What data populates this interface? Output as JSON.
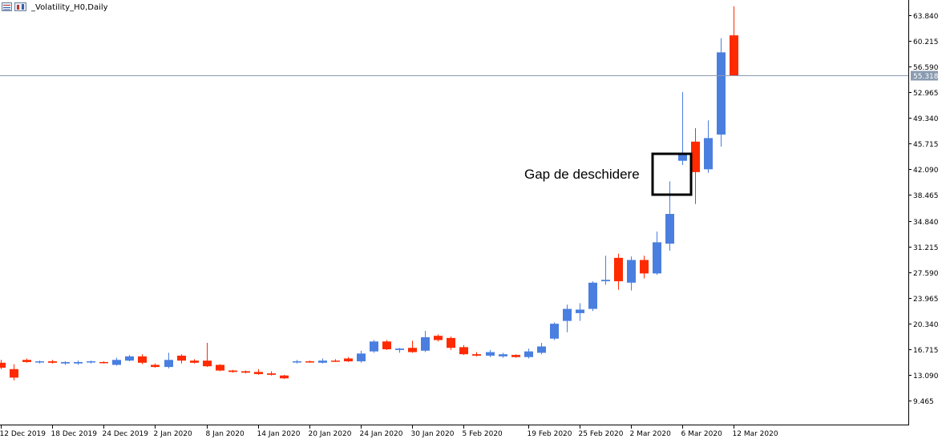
{
  "window": {
    "title": "_Volatility_H0,Daily",
    "icons": [
      "chart-window-icon",
      "chart-properties-icon"
    ]
  },
  "chart_data": {
    "type": "candlestick",
    "symbol": "_Volatility_H0",
    "timeframe": "Daily",
    "ylim": [
      6.5,
      66.0
    ],
    "y_ticks": [
      "63.840",
      "60.215",
      "56.590",
      "52.965",
      "49.340",
      "45.715",
      "42.090",
      "38.465",
      "34.840",
      "31.215",
      "27.590",
      "23.965",
      "20.340",
      "16.715",
      "13.090",
      "9.465"
    ],
    "x_labels": [
      "12 Dec 2019",
      "18 Dec 2019",
      "24 Dec 2019",
      "2 Jan 2020",
      "8 Jan 2020",
      "14 Jan 2020",
      "20 Jan 2020",
      "24 Jan 2020",
      "30 Jan 2020",
      "5 Feb 2020",
      "19 Feb 2020",
      "25 Feb 2020",
      "2 Mar 2020",
      "6 Mar 2020",
      "12 Mar 2020"
    ],
    "current_price": "55.318",
    "colors": {
      "bull": "#4a7fe0",
      "bear": "#ff2a00",
      "price_line": "#8a9bb0",
      "price_tag": "#8a9bb0"
    },
    "candles": [
      {
        "o": 14.8,
        "h": 15.2,
        "l": 13.9,
        "c": 14.1
      },
      {
        "o": 13.9,
        "h": 14.6,
        "l": 12.3,
        "c": 12.7
      },
      {
        "o": 15.2,
        "h": 15.4,
        "l": 14.8,
        "c": 14.9
      },
      {
        "o": 14.9,
        "h": 15.1,
        "l": 14.7,
        "c": 15.0
      },
      {
        "o": 15.0,
        "h": 15.2,
        "l": 14.7,
        "c": 14.8
      },
      {
        "o": 14.7,
        "h": 15.0,
        "l": 14.5,
        "c": 14.9
      },
      {
        "o": 14.7,
        "h": 15.1,
        "l": 14.5,
        "c": 14.9
      },
      {
        "o": 14.9,
        "h": 15.1,
        "l": 14.7,
        "c": 15.0
      },
      {
        "o": 14.9,
        "h": 15.0,
        "l": 14.7,
        "c": 14.8
      },
      {
        "o": 14.5,
        "h": 15.5,
        "l": 14.4,
        "c": 15.2
      },
      {
        "o": 15.1,
        "h": 15.9,
        "l": 15.0,
        "c": 15.7
      },
      {
        "o": 15.7,
        "h": 16.0,
        "l": 14.6,
        "c": 14.8
      },
      {
        "o": 14.5,
        "h": 14.7,
        "l": 14.1,
        "c": 14.2
      },
      {
        "o": 14.2,
        "h": 16.2,
        "l": 14.0,
        "c": 15.2
      },
      {
        "o": 15.8,
        "h": 16.0,
        "l": 14.7,
        "c": 15.1
      },
      {
        "o": 15.1,
        "h": 15.3,
        "l": 14.7,
        "c": 14.8
      },
      {
        "o": 15.1,
        "h": 17.6,
        "l": 14.2,
        "c": 14.3
      },
      {
        "o": 14.5,
        "h": 14.6,
        "l": 13.6,
        "c": 13.7
      },
      {
        "o": 13.7,
        "h": 13.8,
        "l": 13.4,
        "c": 13.5
      },
      {
        "o": 13.6,
        "h": 13.7,
        "l": 13.3,
        "c": 13.4
      },
      {
        "o": 13.5,
        "h": 13.9,
        "l": 13.1,
        "c": 13.2
      },
      {
        "o": 13.3,
        "h": 13.6,
        "l": 13.0,
        "c": 13.1
      },
      {
        "o": 13.0,
        "h": 13.1,
        "l": 12.5,
        "c": 12.6
      },
      {
        "o": 14.9,
        "h": 15.2,
        "l": 14.7,
        "c": 15.0
      },
      {
        "o": 15.0,
        "h": 15.1,
        "l": 14.8,
        "c": 14.9
      },
      {
        "o": 14.8,
        "h": 15.4,
        "l": 14.7,
        "c": 15.1
      },
      {
        "o": 15.1,
        "h": 15.3,
        "l": 14.9,
        "c": 15.0
      },
      {
        "o": 15.4,
        "h": 15.6,
        "l": 14.9,
        "c": 15.0
      },
      {
        "o": 15.0,
        "h": 16.5,
        "l": 14.8,
        "c": 16.1
      },
      {
        "o": 16.4,
        "h": 18.0,
        "l": 16.2,
        "c": 17.8
      },
      {
        "o": 17.8,
        "h": 18.0,
        "l": 16.6,
        "c": 16.7
      },
      {
        "o": 16.6,
        "h": 16.9,
        "l": 16.2,
        "c": 16.8
      },
      {
        "o": 16.9,
        "h": 17.9,
        "l": 16.2,
        "c": 16.3
      },
      {
        "o": 16.5,
        "h": 19.3,
        "l": 16.3,
        "c": 18.4
      },
      {
        "o": 18.6,
        "h": 18.8,
        "l": 17.8,
        "c": 18.0
      },
      {
        "o": 18.3,
        "h": 18.5,
        "l": 16.6,
        "c": 16.9
      },
      {
        "o": 17.0,
        "h": 17.3,
        "l": 15.9,
        "c": 16.0
      },
      {
        "o": 16.0,
        "h": 16.3,
        "l": 15.7,
        "c": 15.8
      },
      {
        "o": 15.8,
        "h": 16.6,
        "l": 15.6,
        "c": 16.3
      },
      {
        "o": 15.7,
        "h": 16.2,
        "l": 15.5,
        "c": 16.0
      },
      {
        "o": 15.9,
        "h": 16.0,
        "l": 15.5,
        "c": 15.6
      },
      {
        "o": 15.6,
        "h": 16.8,
        "l": 15.4,
        "c": 16.4
      },
      {
        "o": 16.2,
        "h": 17.6,
        "l": 16.0,
        "c": 17.1
      },
      {
        "o": 18.2,
        "h": 20.5,
        "l": 18.0,
        "c": 20.3
      },
      {
        "o": 20.7,
        "h": 23.0,
        "l": 19.1,
        "c": 22.4
      },
      {
        "o": 21.8,
        "h": 23.2,
        "l": 20.7,
        "c": 22.3
      },
      {
        "o": 22.4,
        "h": 26.3,
        "l": 22.1,
        "c": 26.1
      },
      {
        "o": 26.3,
        "h": 29.9,
        "l": 25.8,
        "c": 26.5
      },
      {
        "o": 29.6,
        "h": 30.2,
        "l": 25.1,
        "c": 26.3
      },
      {
        "o": 26.1,
        "h": 29.8,
        "l": 25.0,
        "c": 29.3
      },
      {
        "o": 29.3,
        "h": 29.9,
        "l": 26.7,
        "c": 27.4
      },
      {
        "o": 27.4,
        "h": 33.3,
        "l": 27.2,
        "c": 31.8
      },
      {
        "o": 31.6,
        "h": 40.4,
        "l": 30.6,
        "c": 35.8
      },
      {
        "o": 43.3,
        "h": 53.0,
        "l": 42.7,
        "c": 44.3
      },
      {
        "o": 46.0,
        "h": 47.9,
        "l": 37.2,
        "c": 41.7
      },
      {
        "o": 42.1,
        "h": 49.0,
        "l": 41.6,
        "c": 46.5
      },
      {
        "o": 47.0,
        "h": 60.6,
        "l": 45.3,
        "c": 58.6
      },
      {
        "o": 61.0,
        "h": 65.1,
        "l": 55.3,
        "c": 55.3
      }
    ],
    "annotation": {
      "text": "Gap de deschidere"
    }
  }
}
